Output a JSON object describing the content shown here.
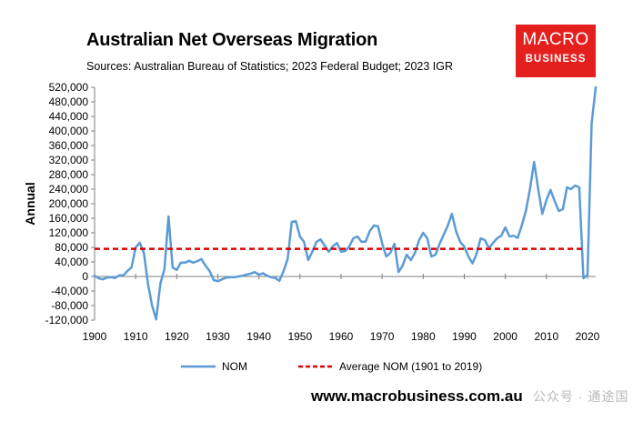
{
  "header": {
    "title": "Australian Net Overseas Migration",
    "subtitle": "Sources: Australian Bureau of Statistics; 2023 Federal Budget; 2023 IGR"
  },
  "logo": {
    "line1": "MACRO",
    "line2": "BUSINESS",
    "color": "#e4201f"
  },
  "footer": {
    "website": "www.macrobusiness.com.au",
    "watermark": "公众号 · 通途国"
  },
  "chart_data": {
    "type": "line",
    "xlabel": "",
    "ylabel": "Annual",
    "xlim": [
      1900,
      2022
    ],
    "ylim": [
      -120000,
      520000
    ],
    "xticks": [
      1900,
      1910,
      1920,
      1930,
      1940,
      1950,
      1960,
      1970,
      1980,
      1990,
      2000,
      2010,
      2020
    ],
    "yticks": [
      -120000,
      -80000,
      -40000,
      0,
      40000,
      80000,
      120000,
      160000,
      200000,
      240000,
      280000,
      320000,
      360000,
      400000,
      440000,
      480000,
      520000
    ],
    "ytick_labels": [
      "-120,000",
      "-80,000",
      "-40,000",
      "0",
      "40,000",
      "80,000",
      "120,000",
      "160,000",
      "200,000",
      "240,000",
      "280,000",
      "320,000",
      "360,000",
      "400,000",
      "440,000",
      "480,000",
      "520,000"
    ],
    "grid": false,
    "legend_position": "bottom",
    "series": [
      {
        "name": "NOM",
        "color": "#5b9bd5",
        "style": "solid",
        "x": [
          1900,
          1901,
          1902,
          1903,
          1904,
          1905,
          1906,
          1907,
          1908,
          1909,
          1910,
          1911,
          1912,
          1913,
          1914,
          1915,
          1916,
          1917,
          1918,
          1919,
          1920,
          1921,
          1922,
          1923,
          1924,
          1925,
          1926,
          1927,
          1928,
          1929,
          1930,
          1931,
          1932,
          1933,
          1934,
          1935,
          1936,
          1937,
          1938,
          1939,
          1940,
          1941,
          1942,
          1943,
          1944,
          1945,
          1946,
          1947,
          1948,
          1949,
          1950,
          1951,
          1952,
          1953,
          1954,
          1955,
          1956,
          1957,
          1958,
          1959,
          1960,
          1961,
          1962,
          1963,
          1964,
          1965,
          1966,
          1967,
          1968,
          1969,
          1970,
          1971,
          1972,
          1973,
          1974,
          1975,
          1976,
          1977,
          1978,
          1979,
          1980,
          1981,
          1982,
          1983,
          1984,
          1985,
          1986,
          1987,
          1988,
          1989,
          1990,
          1991,
          1992,
          1993,
          1994,
          1995,
          1996,
          1997,
          1998,
          1999,
          2000,
          2001,
          2002,
          2003,
          2004,
          2005,
          2006,
          2007,
          2008,
          2009,
          2010,
          2011,
          2012,
          2013,
          2014,
          2015,
          2016,
          2017,
          2018,
          2019,
          2020,
          2021,
          2022
        ],
        "y": [
          2000,
          -5000,
          -8000,
          -3000,
          -2000,
          -4000,
          3000,
          3000,
          15000,
          25000,
          80000,
          93000,
          65000,
          -20000,
          -80000,
          -118000,
          -20000,
          20000,
          165000,
          25000,
          18000,
          38000,
          38000,
          43000,
          38000,
          42000,
          48000,
          30000,
          15000,
          -10000,
          -13000,
          -8000,
          -3000,
          -2000,
          -2000,
          0,
          2000,
          5000,
          8000,
          12000,
          5000,
          9000,
          2000,
          -2000,
          -4000,
          -12000,
          15000,
          48000,
          150000,
          152000,
          110000,
          95000,
          45000,
          68000,
          95000,
          102000,
          85000,
          68000,
          83000,
          92000,
          68000,
          70000,
          82000,
          105000,
          110000,
          95000,
          96000,
          125000,
          140000,
          138000,
          92000,
          55000,
          65000,
          90000,
          12000,
          30000,
          60000,
          45000,
          65000,
          100000,
          120000,
          105000,
          55000,
          60000,
          90000,
          115000,
          140000,
          172000,
          125000,
          95000,
          82000,
          55000,
          36000,
          62000,
          105000,
          100000,
          78000,
          92000,
          105000,
          112000,
          135000,
          110000,
          112000,
          106000,
          140000,
          180000,
          240000,
          315000,
          240000,
          172000,
          210000,
          238000,
          208000,
          180000,
          185000,
          245000,
          240000,
          250000,
          245000,
          -5000,
          5000,
          420000,
          520000
        ]
      },
      {
        "name": "Average NOM (1901 to 2019)",
        "color": "#e00000",
        "style": "dashed",
        "x": [
          1900,
          2019
        ],
        "y": [
          76000,
          76000
        ]
      }
    ]
  }
}
